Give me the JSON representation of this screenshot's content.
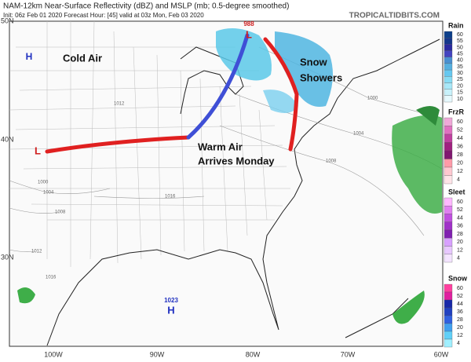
{
  "header": {
    "title": "NAM-12km Near-Surface Reflectivity (dBZ) and MSLP (mb; 0.5-degree smoothed)",
    "subtitle": "Init: 06z Feb 01 2020   Forecast Hour: [45]   valid at 03z Mon, Feb 03 2020",
    "site": "TROPICALTIDBITS.COM"
  },
  "axes": {
    "lat_labels": [
      "50N",
      "40N",
      "30N"
    ],
    "lon_labels": [
      "100W",
      "90W",
      "80W",
      "70W",
      "60W"
    ]
  },
  "annotations": {
    "cold_air": "Cold Air",
    "snow_showers": [
      "Snow",
      "Showers"
    ],
    "warm_air": [
      "Warm Air",
      "Arrives Monday"
    ],
    "low_north": "L",
    "low_north_pressure": "988",
    "low_west": "L",
    "high_north": "H",
    "high_south": "H",
    "high_south_pressure": "1023"
  },
  "isobars": [
    "1012",
    "1000",
    "1004",
    "1008",
    "1016",
    "1000",
    "1004",
    "1008",
    "1012",
    "1016"
  ],
  "legends": [
    {
      "title": "Rain",
      "labels": [
        "60",
        "55",
        "50",
        "45",
        "40",
        "35",
        "30",
        "25",
        "20",
        "15",
        "10"
      ]
    },
    {
      "title": "FrzR",
      "labels": [
        "60",
        "52",
        "44",
        "36",
        "28",
        "20",
        "12",
        "4"
      ]
    },
    {
      "title": "Sleet",
      "labels": [
        "60",
        "52",
        "44",
        "36",
        "28",
        "20",
        "12",
        "4"
      ]
    },
    {
      "title": "Snow",
      "labels": [
        "60",
        "52",
        "44",
        "36",
        "28",
        "20",
        "12",
        "4"
      ]
    }
  ]
}
